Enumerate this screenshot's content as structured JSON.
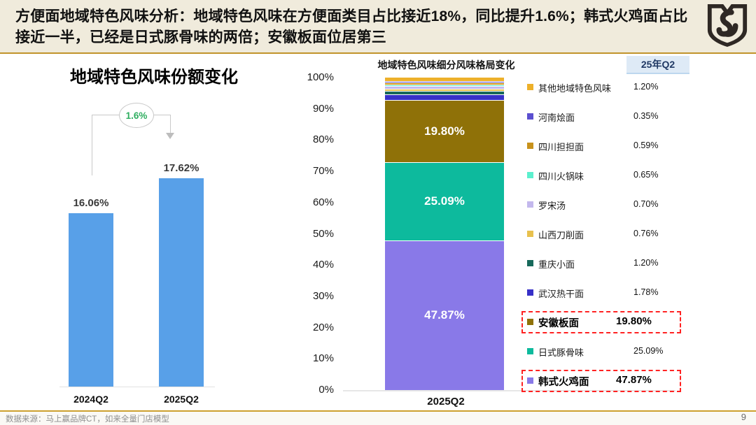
{
  "banner": {
    "title": "方便面地域特色风味分析：地域特色风味在方便面类目占比接近18%，同比提升1.6%；韩式火鸡面占比接近一半，已经是日式豚骨味的两倍；安徽板面位居第三",
    "logo_name": "brand-shield-logo"
  },
  "footer": {
    "source": "数据来源：马上赢品牌CT，如来全量门店模型",
    "page": "9"
  },
  "colors": {
    "banner_bg": "#F0EBDC",
    "gold_divider": "#C1932B",
    "bar_blue": "#58A0E8",
    "annotation_green": "#2FAE60",
    "highlight_red": "#FF2222",
    "period_chip_bg": "#DEEAF6",
    "period_chip_text": "#1F3864"
  },
  "chart_data": [
    {
      "type": "bar",
      "title": "地域特色风味份额变化",
      "categories": [
        "2024Q2",
        "2025Q2"
      ],
      "values": [
        16.06,
        17.62
      ],
      "value_labels": [
        "16.06%",
        "17.62%"
      ],
      "annotation": "1.6%",
      "bar_color": "#58A0E8",
      "ylabel": "",
      "xlabel": "",
      "grid": false,
      "legend": "none",
      "note": "y-axis hidden and truncated (bars not scaled from zero)"
    },
    {
      "type": "stacked-bar",
      "title": "地域特色风味细分风味格局变化",
      "category": "2025Q2",
      "period_header": "25年Q2",
      "ylim": [
        0,
        100
      ],
      "yticks": [
        "100%",
        "90%",
        "80%",
        "70%",
        "60%",
        "50%",
        "40%",
        "30%",
        "20%",
        "10%",
        "0%"
      ],
      "grid": false,
      "legend_position": "right",
      "series": [
        {
          "name": "其他地域特色风味",
          "value": 1.2,
          "value_label": "1.20%",
          "color": "#EDB02A",
          "highlighted": false
        },
        {
          "name": "河南烩面",
          "value": 0.35,
          "value_label": "0.35%",
          "color": "#5B4FD0",
          "highlighted": false
        },
        {
          "name": "四川担担面",
          "value": 0.59,
          "value_label": "0.59%",
          "color": "#C8921C",
          "highlighted": false
        },
        {
          "name": "四川火锅味",
          "value": 0.65,
          "value_label": "0.65%",
          "color": "#5CF0CE",
          "highlighted": false
        },
        {
          "name": "罗宋汤",
          "value": 0.7,
          "value_label": "0.70%",
          "color": "#C3B8ED",
          "highlighted": false
        },
        {
          "name": "山西刀削面",
          "value": 0.76,
          "value_label": "0.76%",
          "color": "#E8C14E",
          "highlighted": false
        },
        {
          "name": "重庆小面",
          "value": 1.2,
          "value_label": "1.20%",
          "color": "#17695B",
          "highlighted": false
        },
        {
          "name": "武汉热干面",
          "value": 1.78,
          "value_label": "1.78%",
          "color": "#3730C8",
          "highlighted": false
        },
        {
          "name": "安徽板面",
          "value": 19.8,
          "value_label": "19.80%",
          "color": "#8F7108",
          "highlighted": true
        },
        {
          "name": "日式豚骨味",
          "value": 25.09,
          "value_label": "25.09%",
          "color": "#0DBA9D",
          "highlighted": false
        },
        {
          "name": "韩式火鸡面",
          "value": 47.87,
          "value_label": "47.87%",
          "color": "#8979E8",
          "highlighted": true
        }
      ]
    }
  ]
}
